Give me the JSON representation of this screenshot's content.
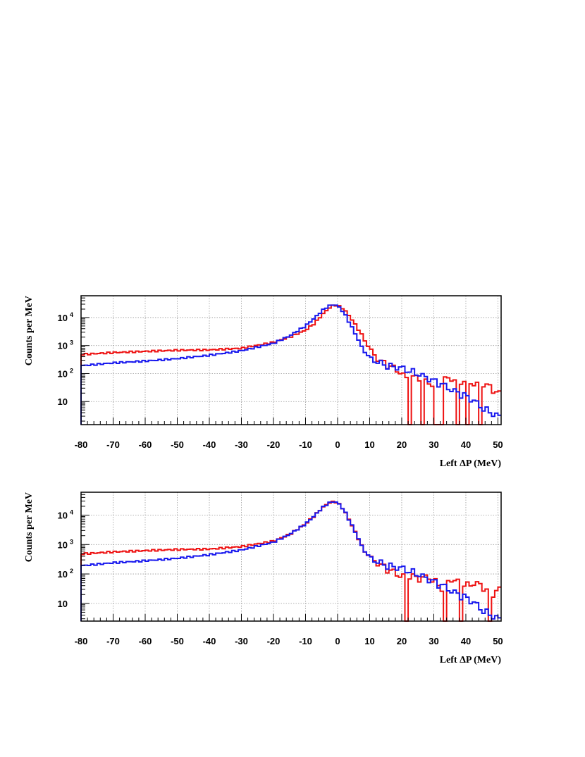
{
  "chart_data": [
    {
      "type": "histogram",
      "title": "",
      "xlabel": "Left ΔP (MeV)",
      "ylabel": "Counts per MeV",
      "xlim": [
        -80,
        51
      ],
      "ylim": [
        1.5,
        60000
      ],
      "yscale": "log",
      "grid": true,
      "legend": "none",
      "bin_width_mev": 1,
      "x_ticks": [
        "-80",
        "-70",
        "-60",
        "-50",
        "-40",
        "-30",
        "-20",
        "-10",
        "0",
        "10",
        "20",
        "30",
        "40",
        "50"
      ],
      "y_ticks": [
        {
          "base": "10",
          "exp": "4"
        },
        {
          "base": "10",
          "exp": "3"
        },
        {
          "base": "10",
          "exp": "2"
        },
        {
          "base": "10",
          "exp": ""
        }
      ],
      "series": [
        {
          "color": "#ee1111",
          "x": [
            -80,
            -70,
            -60,
            -50,
            -40,
            -30,
            -20,
            -15,
            -10,
            -7,
            -5,
            -3,
            -2,
            -1,
            0,
            2,
            5,
            8,
            10,
            13,
            15,
            18,
            20,
            22,
            25,
            28,
            30,
            33,
            35,
            38,
            40,
            43,
            45,
            48,
            50
          ],
          "values": [
            480,
            560,
            620,
            680,
            700,
            800,
            1300,
            2000,
            3500,
            6500,
            12000,
            20000,
            25000,
            28000,
            27000,
            20000,
            7000,
            2000,
            700,
            300,
            220,
            150,
            100,
            60,
            80,
            50,
            40,
            60,
            70,
            50,
            60,
            40,
            50,
            30,
            20
          ],
          "dropouts": [
            22.5,
            26.5,
            30.5,
            31.5,
            32.5,
            37.5,
            40.5,
            44.5
          ]
        },
        {
          "color": "#1818ee",
          "x": [
            -80,
            -70,
            -60,
            -50,
            -40,
            -30,
            -20,
            -15,
            -10,
            -7,
            -5,
            -3,
            -2,
            -1,
            0,
            2,
            5,
            8,
            10,
            13,
            15,
            18,
            20,
            22,
            25,
            28,
            30,
            33,
            35,
            38,
            40,
            43,
            45,
            48,
            50
          ],
          "values": [
            190,
            240,
            280,
            340,
            450,
            650,
            1200,
            2200,
            5000,
            10000,
            17000,
            25000,
            28000,
            28500,
            27000,
            15000,
            3500,
            700,
            350,
            250,
            200,
            170,
            160,
            130,
            100,
            70,
            55,
            40,
            28,
            20,
            16,
            10,
            6,
            4,
            3
          ],
          "dropouts": []
        }
      ]
    },
    {
      "type": "histogram",
      "title": "",
      "xlabel": "Left ΔP (MeV)",
      "ylabel": "Counts per MeV",
      "xlim": [
        -80,
        51
      ],
      "ylim": [
        2.5,
        60000
      ],
      "yscale": "log",
      "grid": true,
      "legend": "none",
      "bin_width_mev": 1,
      "x_ticks": [
        "-80",
        "-70",
        "-60",
        "-50",
        "-40",
        "-30",
        "-20",
        "-10",
        "0",
        "10",
        "20",
        "30",
        "40",
        "50"
      ],
      "y_ticks": [
        {
          "base": "10",
          "exp": "4"
        },
        {
          "base": "10",
          "exp": "3"
        },
        {
          "base": "10",
          "exp": "2"
        },
        {
          "base": "10",
          "exp": ""
        }
      ],
      "series": [
        {
          "color": "#ee1111",
          "x": [
            -80,
            -70,
            -60,
            -50,
            -40,
            -30,
            -20,
            -15,
            -10,
            -7,
            -5,
            -3,
            -2,
            -1,
            0,
            2,
            5,
            8,
            10,
            13,
            15,
            18,
            20,
            22,
            25,
            28,
            30,
            33,
            35,
            38,
            40,
            43,
            45,
            48,
            50
          ],
          "values": [
            480,
            560,
            620,
            680,
            700,
            850,
            1300,
            2200,
            5000,
            10000,
            17000,
            25000,
            28000,
            28500,
            27000,
            15000,
            3500,
            700,
            350,
            220,
            160,
            110,
            80,
            100,
            70,
            80,
            60,
            30,
            70,
            50,
            40,
            50,
            40,
            20,
            30
          ],
          "dropouts": [
            21.5,
            33.5,
            38.5,
            47.5
          ]
        },
        {
          "color": "#1818ee",
          "x": [
            -80,
            -70,
            -60,
            -50,
            -40,
            -30,
            -20,
            -15,
            -10,
            -7,
            -5,
            -3,
            -2,
            -1,
            0,
            2,
            5,
            8,
            10,
            13,
            15,
            18,
            20,
            22,
            25,
            28,
            30,
            33,
            35,
            38,
            40,
            43,
            45,
            48,
            50
          ],
          "values": [
            190,
            240,
            280,
            340,
            450,
            650,
            1200,
            2200,
            5000,
            10000,
            17000,
            25000,
            28000,
            28500,
            27000,
            15000,
            3500,
            700,
            350,
            250,
            200,
            170,
            160,
            130,
            100,
            70,
            55,
            40,
            28,
            20,
            16,
            10,
            6,
            4,
            3
          ],
          "dropouts": []
        }
      ]
    }
  ]
}
